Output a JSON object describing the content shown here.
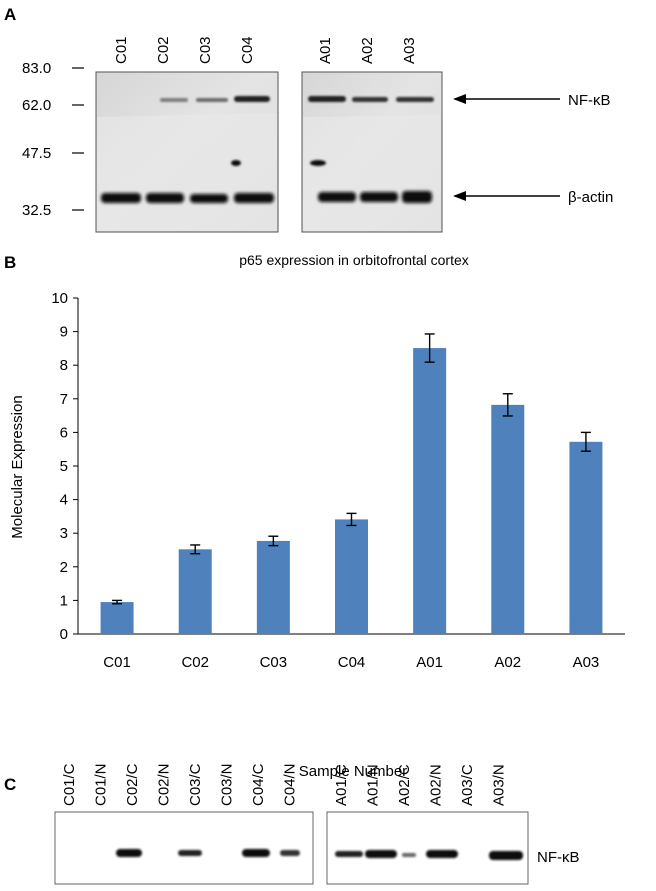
{
  "panel_a": {
    "letter": "A",
    "markers": [
      "83.0",
      "62.0",
      "47.5",
      "32.5"
    ],
    "lanes_left": [
      "C01",
      "C02",
      "C03",
      "C04"
    ],
    "lanes_right": [
      "A01",
      "A02",
      "A03"
    ],
    "band_labels": [
      "NF-κB",
      "β-actin"
    ]
  },
  "panel_c": {
    "letter": "C",
    "lanes_left": [
      "C01/C",
      "C01/N",
      "C02/C",
      "C02/N",
      "C03/C",
      "C03/N",
      "C04/C",
      "C04/N"
    ],
    "lanes_right": [
      "A01/C",
      "A01/N",
      "A02/C",
      "A02/N",
      "A03/C",
      "A03/N"
    ],
    "band_label": "NF-κB"
  },
  "chart_data": {
    "type": "bar",
    "panel_letter": "B",
    "title": "p65 expression in orbitofrontal cortex",
    "xlabel": "Sample Number",
    "ylabel": "Molecular Expression",
    "categories": [
      "C01",
      "C02",
      "C03",
      "C04",
      "A01",
      "A02",
      "A03"
    ],
    "values": [
      0.95,
      2.52,
      2.77,
      3.41,
      8.51,
      6.82,
      5.72
    ],
    "errors": [
      0.05,
      0.13,
      0.14,
      0.18,
      0.42,
      0.33,
      0.28
    ],
    "ylim": [
      0,
      10
    ],
    "yticks": [
      "0",
      "1",
      "2",
      "3",
      "4",
      "5",
      "6",
      "7",
      "8",
      "9",
      "10"
    ],
    "grid": false,
    "bar_color": "#4f81bd"
  }
}
